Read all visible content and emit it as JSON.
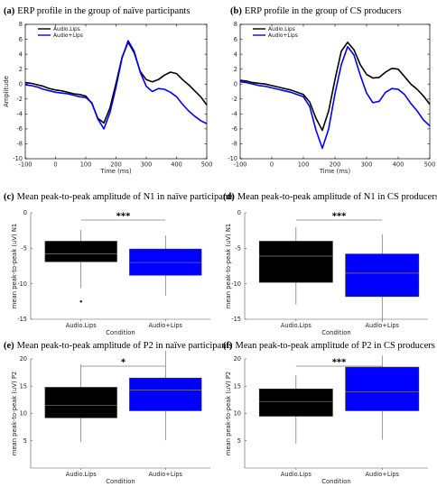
{
  "colors": {
    "black": "#000000",
    "blue": "#0000ff",
    "axis": "#333333",
    "box_edge": "#4a4a4a",
    "median": "#808080"
  },
  "chart_data": [
    {
      "type": "line",
      "panel_letter": "(a)",
      "title": "ERP profile in the group of naïve participants",
      "xlabel": "Time (ms)",
      "ylabel": "Amplitude",
      "xlim": [
        -100,
        500
      ],
      "ylim": [
        -10,
        8
      ],
      "xticks": [
        "-100",
        "0",
        "100",
        "200",
        "300",
        "400",
        "500"
      ],
      "yticks": [
        "-10",
        "-8",
        "-6",
        "-4",
        "-2",
        "0",
        "2",
        "4",
        "6",
        "8"
      ],
      "series": [
        {
          "name": "Audio.Lips",
          "color": "black",
          "x": [
            -100,
            -80,
            -60,
            -40,
            -20,
            0,
            20,
            40,
            60,
            80,
            100,
            120,
            140,
            160,
            180,
            200,
            220,
            240,
            260,
            280,
            300,
            320,
            340,
            360,
            380,
            400,
            420,
            440,
            460,
            480,
            500
          ],
          "y": [
            0.2,
            0.1,
            -0.1,
            -0.3,
            -0.6,
            -0.8,
            -0.9,
            -1.1,
            -1.3,
            -1.4,
            -1.6,
            -2.6,
            -4.6,
            -5.2,
            -3.2,
            0.1,
            3.6,
            5.6,
            4.2,
            1.7,
            0.6,
            0.3,
            0.6,
            1.2,
            1.6,
            1.4,
            0.6,
            -0.1,
            -0.9,
            -1.7,
            -2.8
          ]
        },
        {
          "name": "Audio+Lips",
          "color": "blue",
          "x": [
            -100,
            -80,
            -60,
            -40,
            -20,
            0,
            20,
            40,
            60,
            80,
            100,
            120,
            140,
            160,
            180,
            200,
            220,
            240,
            260,
            280,
            300,
            320,
            340,
            360,
            380,
            400,
            420,
            440,
            460,
            480,
            500
          ],
          "y": [
            -0.1,
            -0.2,
            -0.4,
            -0.7,
            -0.9,
            -1.1,
            -1.2,
            -1.3,
            -1.5,
            -1.7,
            -1.8,
            -2.5,
            -4.7,
            -6.0,
            -3.8,
            -0.4,
            3.5,
            5.8,
            4.4,
            1.6,
            -0.3,
            -1.0,
            -0.6,
            -0.7,
            -1.1,
            -1.7,
            -2.7,
            -3.6,
            -4.3,
            -4.9,
            -5.3
          ]
        }
      ]
    },
    {
      "type": "line",
      "panel_letter": "(b)",
      "title": "ERP profile in the group of CS  producers",
      "xlabel": "Time (ms)",
      "ylabel": "",
      "xlim": [
        -100,
        500
      ],
      "ylim": [
        -10,
        8
      ],
      "xticks": [
        "-100",
        "0",
        "100",
        "200",
        "300",
        "400",
        "500"
      ],
      "yticks": [
        "-10",
        "-8",
        "-6",
        "-4",
        "-2",
        "0",
        "2",
        "4",
        "6",
        "8"
      ],
      "series": [
        {
          "name": "Audio.Lips",
          "color": "black",
          "x": [
            -100,
            -80,
            -60,
            -40,
            -20,
            0,
            20,
            40,
            60,
            80,
            100,
            120,
            140,
            160,
            180,
            200,
            220,
            240,
            260,
            280,
            300,
            320,
            340,
            360,
            380,
            400,
            420,
            440,
            460,
            480,
            500
          ],
          "y": [
            0.5,
            0.4,
            0.2,
            0.1,
            0.0,
            -0.2,
            -0.4,
            -0.6,
            -0.8,
            -1.1,
            -1.4,
            -2.4,
            -4.6,
            -6.2,
            -3.6,
            0.6,
            4.4,
            5.6,
            4.6,
            2.6,
            1.3,
            0.8,
            0.9,
            1.6,
            2.1,
            2.0,
            1.0,
            0.0,
            -0.7,
            -1.6,
            -2.7
          ]
        },
        {
          "name": "Audio+Lips",
          "color": "blue",
          "x": [
            -100,
            -80,
            -60,
            -40,
            -20,
            0,
            20,
            40,
            60,
            80,
            100,
            120,
            140,
            160,
            180,
            200,
            220,
            240,
            260,
            280,
            300,
            320,
            340,
            360,
            380,
            400,
            420,
            440,
            460,
            480,
            500
          ],
          "y": [
            0.3,
            0.2,
            0.0,
            -0.2,
            -0.3,
            -0.5,
            -0.7,
            -0.9,
            -1.1,
            -1.4,
            -1.7,
            -3.0,
            -6.2,
            -8.6,
            -6.0,
            -1.3,
            2.6,
            5.0,
            3.9,
            1.2,
            -1.2,
            -2.5,
            -2.3,
            -1.1,
            -0.6,
            -0.7,
            -1.4,
            -2.6,
            -3.6,
            -4.8,
            -5.6
          ]
        }
      ]
    },
    {
      "type": "box",
      "panel_letter": "(c)",
      "title": "Mean peak-to-peak amplitude of N1 in naïve participants",
      "xlabel": "Condition",
      "ylabel": "mean peak-to-peak (uV) N1",
      "ylim": [
        -15,
        0
      ],
      "yticks": [
        "-15",
        "-10",
        "-5",
        "0"
      ],
      "significance": "***",
      "categories": [
        "Audio.Lips",
        "Audio+Lips"
      ],
      "boxes": [
        {
          "color": "black",
          "whisker_low": -10.6,
          "q1": -6.9,
          "median": -5.8,
          "q3": -4.0,
          "whisker_high": -2.4,
          "outliers": [
            -12.5
          ]
        },
        {
          "color": "blue",
          "whisker_low": -11.7,
          "q1": -8.8,
          "median": -7.0,
          "q3": -5.1,
          "whisker_high": -3.2,
          "outliers": []
        }
      ]
    },
    {
      "type": "box",
      "panel_letter": "(d)",
      "title": "Mean peak-to-peak  amplitude of N1 in CS producers",
      "xlabel": "Condition",
      "ylabel": "mean peak-to-peak (uV) N1",
      "ylim": [
        -15,
        0
      ],
      "yticks": [
        "-15",
        "-10",
        "-5",
        "0"
      ],
      "significance": "***",
      "categories": [
        "Audio.Lips",
        "Audio+Lips"
      ],
      "boxes": [
        {
          "color": "black",
          "whisker_low": -12.9,
          "q1": -9.8,
          "median": -6.1,
          "q3": -4.0,
          "whisker_high": -2.0,
          "outliers": []
        },
        {
          "color": "blue",
          "whisker_low": -15.4,
          "q1": -11.8,
          "median": -8.5,
          "q3": -5.8,
          "whisker_high": -3.0,
          "outliers": []
        }
      ]
    },
    {
      "type": "box",
      "panel_letter": "(e)",
      "title": "Mean peak-to-peak amplitude of P2 in naïve participants",
      "xlabel": "Condition",
      "ylabel": "mean peak-to-peak (uV) P2",
      "ylim": [
        0,
        20
      ],
      "yticks": [
        "5",
        "10",
        "15",
        "20"
      ],
      "significance": "*",
      "categories": [
        "Audio.Lips",
        "Audio+Lips"
      ],
      "boxes": [
        {
          "color": "black",
          "whisker_low": 4.8,
          "q1": 9.2,
          "median": 11.5,
          "q3": 14.8,
          "whisker_high": 19.0,
          "outliers": []
        },
        {
          "color": "blue",
          "whisker_low": 5.1,
          "q1": 10.5,
          "median": 14.3,
          "q3": 16.5,
          "whisker_high": 21.5,
          "outliers": []
        }
      ]
    },
    {
      "type": "box",
      "panel_letter": "(f)",
      "title": "Mean peak-to-peak amplitude of P2 in CS producers",
      "xlabel": "Condition",
      "ylabel": "mean peak-to-peak (uV) P2",
      "ylim": [
        0,
        20
      ],
      "yticks": [
        "5",
        "10",
        "15",
        "20"
      ],
      "significance": "***",
      "categories": [
        "Audio.Lips",
        "Audio+Lips"
      ],
      "boxes": [
        {
          "color": "black",
          "whisker_low": 4.5,
          "q1": 9.5,
          "median": 12.2,
          "q3": 14.5,
          "whisker_high": 17.0,
          "outliers": []
        },
        {
          "color": "blue",
          "whisker_low": 5.2,
          "q1": 10.5,
          "median": 14.0,
          "q3": 18.5,
          "whisker_high": 20.6,
          "outliers": []
        }
      ]
    }
  ]
}
